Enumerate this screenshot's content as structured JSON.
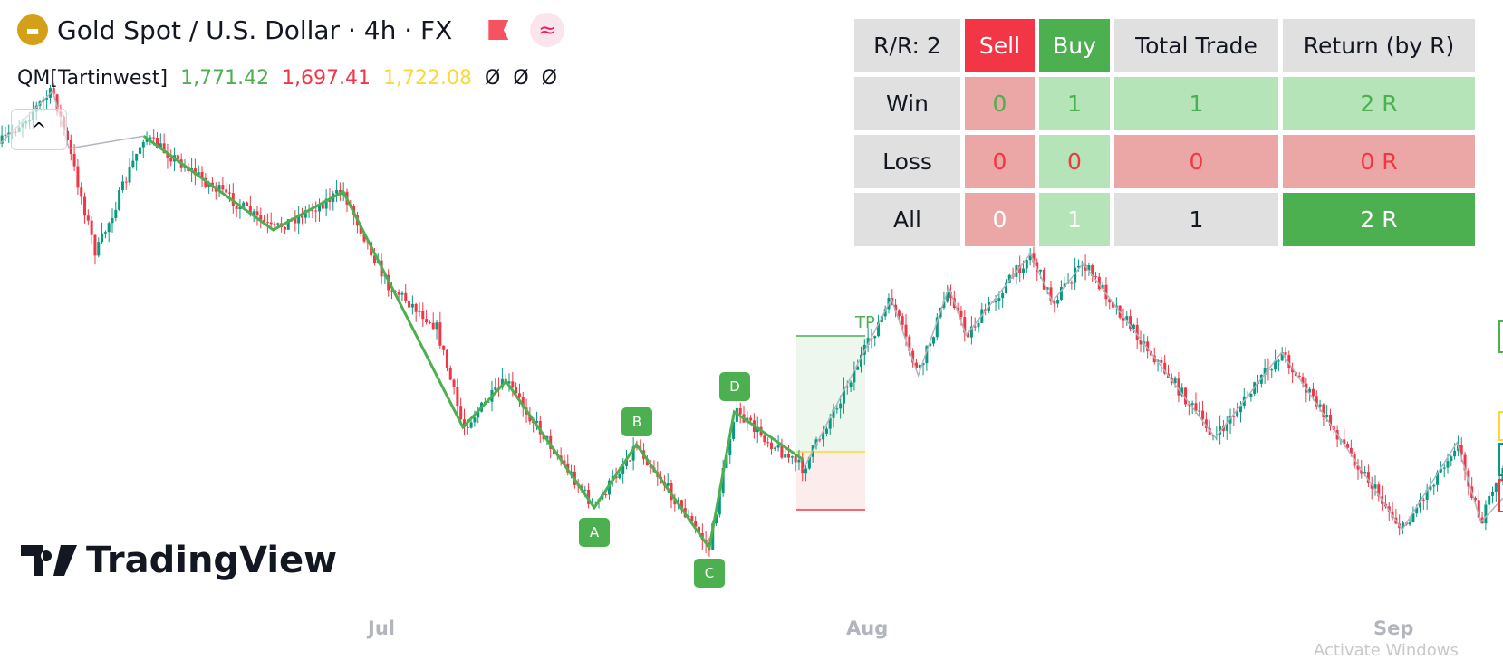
{
  "header": {
    "title": "Gold Spot / U.S. Dollar · 4h · FX",
    "symbol_icon": "gold-bars-icon",
    "flag_icon": "flag-icon",
    "wave_icon": "approx-icon",
    "wave_glyph": "≈",
    "collapse_glyph": "^"
  },
  "indicator": {
    "name": "QM[Tartinwest]",
    "values": [
      {
        "text": "1,771.42",
        "color": "#4caf50"
      },
      {
        "text": "1,697.41",
        "color": "#f23645"
      },
      {
        "text": "1,722.08",
        "color": "#fdd835"
      }
    ],
    "empty": [
      "Ø",
      "Ø",
      "Ø"
    ]
  },
  "stats_table": {
    "headers": [
      "R/R: 2",
      "Sell",
      "Buy",
      "Total Trade",
      "Return (by R)"
    ],
    "rows": [
      {
        "label": "Win",
        "sell": "0",
        "buy": "1",
        "total": "1",
        "ret": "2 R"
      },
      {
        "label": "Loss",
        "sell": "0",
        "buy": "0",
        "total": "0",
        "ret": "0 R"
      },
      {
        "label": "All",
        "sell": "0",
        "buy": "1",
        "total": "1",
        "ret": "2 R"
      }
    ]
  },
  "pattern_labels": [
    "A",
    "B",
    "C",
    "D"
  ],
  "tp_label": "TP",
  "x_axis": [
    "Jul",
    "Aug",
    "Sep"
  ],
  "logo": "TradingView",
  "watermark": "Activate Windows",
  "colors": {
    "up": "#089981",
    "down": "#f23645",
    "pattern": "#4caf50",
    "zigzag": "#b2b5be",
    "sell": "#f23645",
    "buy": "#4caf50"
  }
}
